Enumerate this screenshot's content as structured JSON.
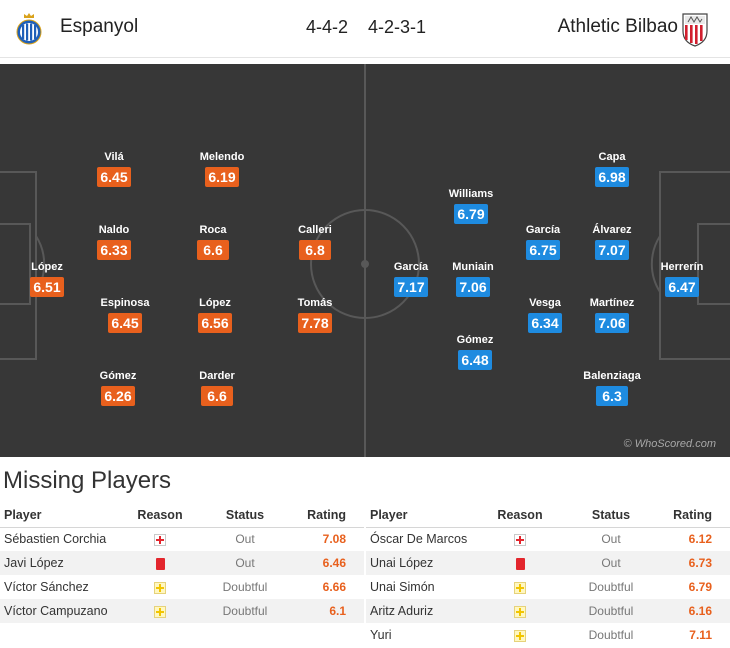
{
  "header": {
    "home_team": "Espanyol",
    "home_crest_icon": "espanyol-crest-icon",
    "home_formation": "4-4-2",
    "away_formation": "4-2-3-1",
    "away_team": "Athletic Bilbao",
    "away_crest_icon": "athletic-bilbao-crest-icon"
  },
  "colors": {
    "home_rating": "#e8601d",
    "away_rating": "#1e8be0",
    "pitch": "#373737"
  },
  "home_players": [
    {
      "name": "López",
      "rating": "6.51"
    },
    {
      "name": "Vilá",
      "rating": "6.45"
    },
    {
      "name": "Naldo",
      "rating": "6.33"
    },
    {
      "name": "Espinosa",
      "rating": "6.45"
    },
    {
      "name": "Gómez",
      "rating": "6.26"
    },
    {
      "name": "Melendo",
      "rating": "6.19"
    },
    {
      "name": "Roca",
      "rating": "6.6"
    },
    {
      "name": "López",
      "rating": "6.56"
    },
    {
      "name": "Darder",
      "rating": "6.6"
    },
    {
      "name": "Calleri",
      "rating": "6.8"
    },
    {
      "name": "Tomás",
      "rating": "7.78"
    }
  ],
  "away_players": [
    {
      "name": "García",
      "rating": "7.17"
    },
    {
      "name": "Williams",
      "rating": "6.79"
    },
    {
      "name": "Muniain",
      "rating": "7.06"
    },
    {
      "name": "Gómez",
      "rating": "6.48"
    },
    {
      "name": "García",
      "rating": "6.75"
    },
    {
      "name": "Vesga",
      "rating": "6.34"
    },
    {
      "name": "Capa",
      "rating": "6.98"
    },
    {
      "name": "Álvarez",
      "rating": "7.07"
    },
    {
      "name": "Martínez",
      "rating": "7.06"
    },
    {
      "name": "Balenziaga",
      "rating": "6.3"
    },
    {
      "name": "Herrerín",
      "rating": "6.47"
    }
  ],
  "watermark": "© WhoScored.com",
  "missing": {
    "title": "Missing Players",
    "headers": {
      "player": "Player",
      "reason": "Reason",
      "status": "Status",
      "rating": "Rating"
    },
    "home": [
      {
        "player": "Sébastien Corchia",
        "reason_icon": "injury-icon",
        "status": "Out",
        "rating": "7.08"
      },
      {
        "player": "Javi López",
        "reason_icon": "red-card-icon",
        "status": "Out",
        "rating": "6.46"
      },
      {
        "player": "Víctor Sánchez",
        "reason_icon": "doubtful-icon",
        "status": "Doubtful",
        "rating": "6.66"
      },
      {
        "player": "Víctor Campuzano",
        "reason_icon": "doubtful-icon",
        "status": "Doubtful",
        "rating": "6.1"
      }
    ],
    "away": [
      {
        "player": "Óscar De Marcos",
        "reason_icon": "injury-icon",
        "status": "Out",
        "rating": "6.12"
      },
      {
        "player": "Unai López",
        "reason_icon": "red-card-icon",
        "status": "Out",
        "rating": "6.73"
      },
      {
        "player": "Unai Simón",
        "reason_icon": "doubtful-icon",
        "status": "Doubtful",
        "rating": "6.79"
      },
      {
        "player": "Aritz Aduriz",
        "reason_icon": "doubtful-icon",
        "status": "Doubtful",
        "rating": "6.16"
      },
      {
        "player": "Yuri",
        "reason_icon": "doubtful-icon",
        "status": "Doubtful",
        "rating": "7.11"
      }
    ]
  }
}
